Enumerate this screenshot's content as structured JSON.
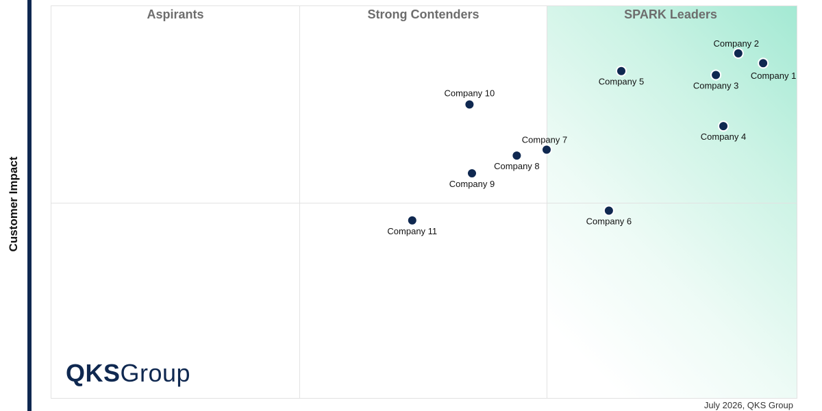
{
  "chart_data": {
    "type": "scatter",
    "ylabel": "Customer Impact",
    "xlabel": "",
    "xlim": [
      0,
      3
    ],
    "ylim": [
      0,
      2
    ],
    "grid": true,
    "quadrants": [
      "Aspirants",
      "Strong Contenders",
      "SPARK Leaders"
    ],
    "highlight_color": "#a3e9d3",
    "marker_color": "#0f2850",
    "points": [
      {
        "label": "Company 1",
        "x": 2.86,
        "y": 1.71,
        "label_pos": "below-right"
      },
      {
        "label": "Company 2",
        "x": 2.76,
        "y": 1.76,
        "label_pos": "above-left"
      },
      {
        "label": "Company 3",
        "x": 2.67,
        "y": 1.65,
        "label_pos": "below"
      },
      {
        "label": "Company 4",
        "x": 2.7,
        "y": 1.39,
        "label_pos": "below"
      },
      {
        "label": "Company 5",
        "x": 2.29,
        "y": 1.67,
        "label_pos": "below"
      },
      {
        "label": "Company 6",
        "x": 2.24,
        "y": 0.96,
        "label_pos": "below"
      },
      {
        "label": "Company 7",
        "x": 1.99,
        "y": 1.27,
        "label_pos": "above-left"
      },
      {
        "label": "Company 8",
        "x": 1.87,
        "y": 1.24,
        "label_pos": "below"
      },
      {
        "label": "Company 9",
        "x": 1.69,
        "y": 1.15,
        "label_pos": "below"
      },
      {
        "label": "Company 10",
        "x": 1.68,
        "y": 1.5,
        "label_pos": "above"
      },
      {
        "label": "Company 11",
        "x": 1.45,
        "y": 0.91,
        "label_pos": "below"
      }
    ]
  },
  "logo": {
    "brand": "QKS",
    "suffix": "Group"
  },
  "footnote": "July 2026, QKS Group"
}
